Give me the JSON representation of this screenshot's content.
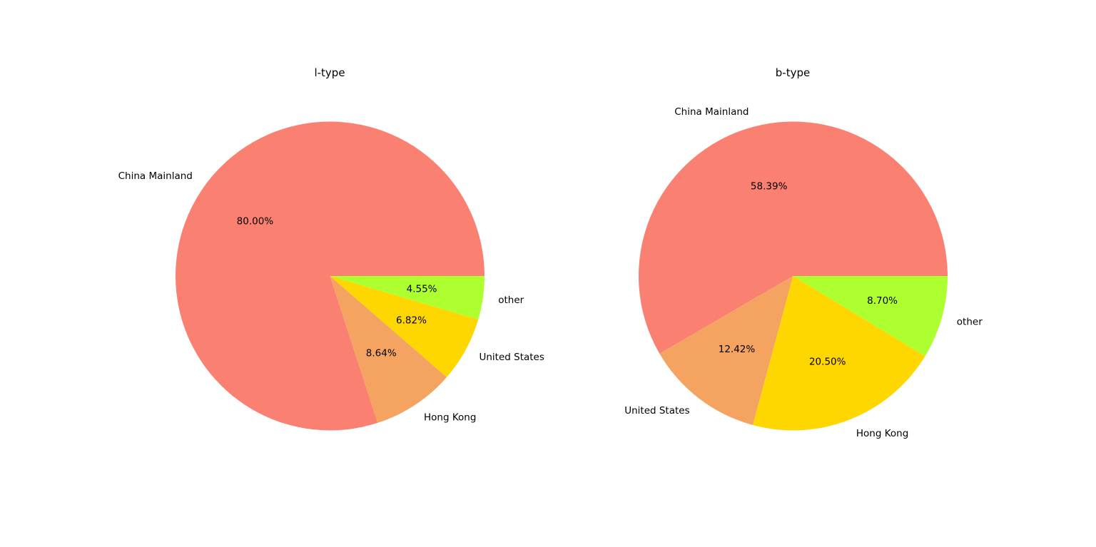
{
  "chart_data": [
    {
      "type": "pie",
      "title": "l-type",
      "labels": [
        "China Mainland",
        "Hong Kong",
        "United States",
        "other"
      ],
      "values": [
        80.0,
        8.64,
        6.82,
        4.55
      ],
      "value_labels": [
        "80.00%",
        "8.64%",
        "6.82%",
        "4.55%"
      ],
      "colors": [
        "#fa8072",
        "#f4a460",
        "#ffd700",
        "#adff2f"
      ]
    },
    {
      "type": "pie",
      "title": "b-type",
      "labels": [
        "China Mainland",
        "United States",
        "Hong Kong",
        "other"
      ],
      "values": [
        58.39,
        12.42,
        20.5,
        8.7
      ],
      "value_labels": [
        "58.39%",
        "12.42%",
        "20.50%",
        "8.70%"
      ],
      "colors": [
        "#fa8072",
        "#f4a460",
        "#ffd700",
        "#adff2f"
      ]
    }
  ]
}
